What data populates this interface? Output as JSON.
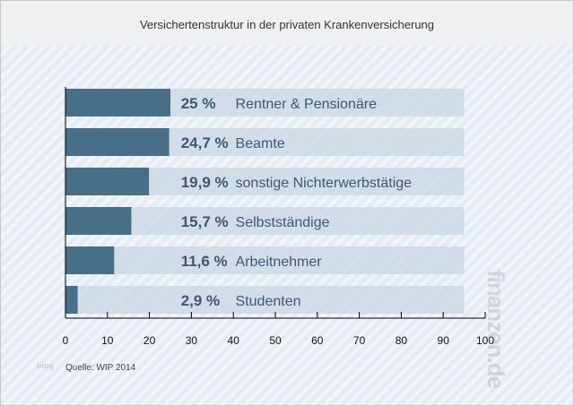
{
  "chart_data": {
    "type": "bar",
    "orientation": "horizontal",
    "title": "Versichertenstruktur in der privaten Krankenversicherung",
    "categories": [
      "Rentner & Pensionäre",
      "Beamte",
      "sonstige Nichterwerbstätige",
      "Selbstständige",
      "Arbeitnehmer",
      "Studenten"
    ],
    "values": [
      25,
      24.7,
      19.9,
      15.7,
      11.6,
      2.9
    ],
    "value_labels": [
      "25 %",
      "24,7 %",
      "19,9 %",
      "15,7 %",
      "11,6 %",
      "2,9 %"
    ],
    "xlim": [
      0,
      100
    ],
    "xticks": [
      0,
      10,
      20,
      30,
      40,
      50,
      60,
      70,
      80,
      90,
      100
    ],
    "grid": false,
    "colors": {
      "bar": "#476f87",
      "track": "#cbd8e3",
      "label": "#3f5872"
    }
  },
  "source": "Quelle: WIP 2014",
  "watermark": "finanzen.de",
  "blog_mark": "blog"
}
